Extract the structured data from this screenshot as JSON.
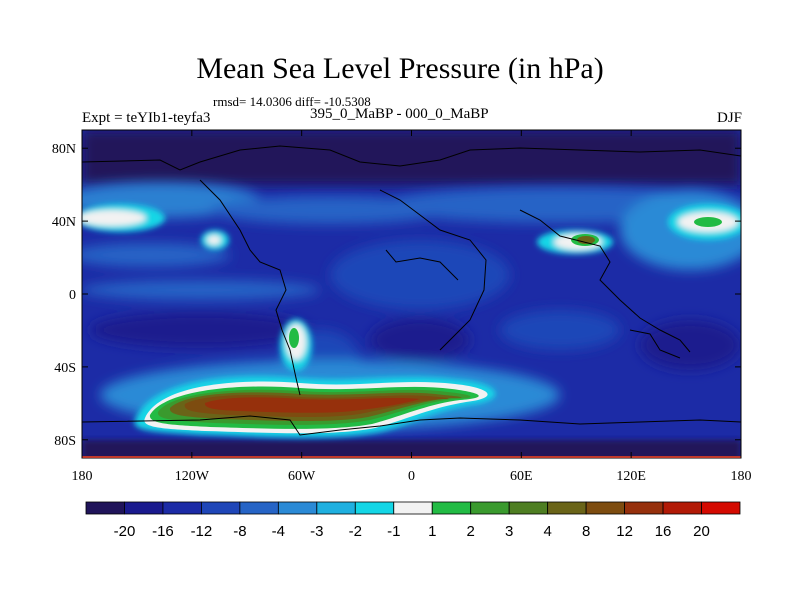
{
  "title": "Mean Sea Level Pressure (in hPa)",
  "stats": "rmsd= 14.0306 diff= -10.5308",
  "experiment": "Expt = teYIb1-teyfa3",
  "comparison": "395_0_MaBP - 000_0_MaBP",
  "season": "DJF",
  "map": {
    "lon_ticks": [
      "180",
      "120W",
      "60W",
      "0",
      "60E",
      "120E",
      "180"
    ],
    "lat_ticks": [
      "80N",
      "40N",
      "0",
      "40S",
      "80S"
    ]
  },
  "colorbar": {
    "colors": [
      "#20145a",
      "#1a1a8e",
      "#1c2ba6",
      "#1f46b8",
      "#2664c6",
      "#2b8ad6",
      "#1fb0e0",
      "#14d6e6",
      "#f2f2f2",
      "#22bb44",
      "#3a9a2e",
      "#4e7e22",
      "#6a6418",
      "#7d4c10",
      "#96300c",
      "#b21a06",
      "#d40a00"
    ],
    "labels": [
      "-20",
      "-16",
      "-12",
      "-8",
      "-4",
      "-3",
      "-2",
      "-1",
      "1",
      "2",
      "3",
      "4",
      "8",
      "12",
      "16",
      "20"
    ]
  },
  "colors": {
    "background_field": "#1c2ba6",
    "polar": "#20145a"
  }
}
